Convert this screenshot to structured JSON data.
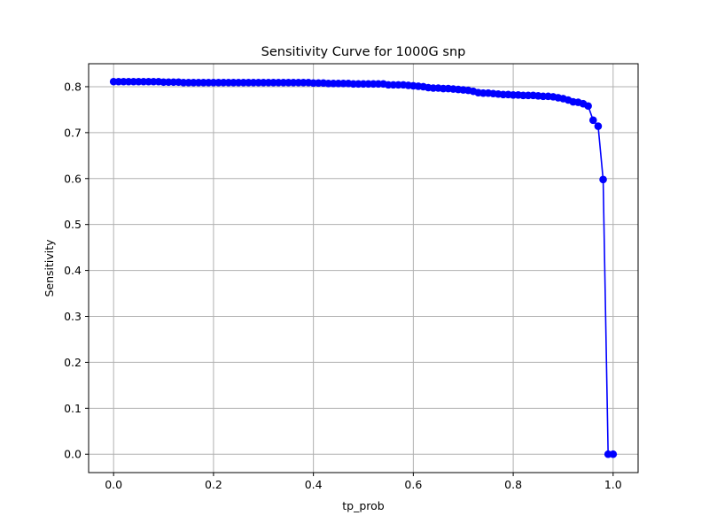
{
  "chart_data": {
    "type": "line",
    "title": "Sensitivity Curve for 1000G snp",
    "xlabel": "tp_prob",
    "ylabel": "Sensitivity",
    "xlim": [
      -0.05,
      1.05
    ],
    "ylim": [
      -0.04,
      0.85
    ],
    "xticks": [
      0.0,
      0.2,
      0.4,
      0.6,
      0.8,
      1.0
    ],
    "xtick_labels": [
      "0.0",
      "0.2",
      "0.4",
      "0.6",
      "0.8",
      "1.0"
    ],
    "yticks": [
      0.0,
      0.1,
      0.2,
      0.3,
      0.4,
      0.5,
      0.6,
      0.7,
      0.8
    ],
    "ytick_labels": [
      "0.0",
      "0.1",
      "0.2",
      "0.3",
      "0.4",
      "0.5",
      "0.6",
      "0.7",
      "0.8"
    ],
    "grid": true,
    "series": [
      {
        "color": "#0000ff",
        "marker": "circle",
        "x": [
          0.0,
          0.01,
          0.02,
          0.03,
          0.04,
          0.05,
          0.06,
          0.07,
          0.08,
          0.09,
          0.1,
          0.11,
          0.12,
          0.13,
          0.14,
          0.15,
          0.16,
          0.17,
          0.18,
          0.19,
          0.2,
          0.21,
          0.22,
          0.23,
          0.24,
          0.25,
          0.26,
          0.27,
          0.28,
          0.29,
          0.3,
          0.31,
          0.32,
          0.33,
          0.34,
          0.35,
          0.36,
          0.37,
          0.38,
          0.39,
          0.4,
          0.41,
          0.42,
          0.43,
          0.44,
          0.45,
          0.46,
          0.47,
          0.48,
          0.49,
          0.5,
          0.51,
          0.52,
          0.53,
          0.54,
          0.55,
          0.56,
          0.57,
          0.58,
          0.59,
          0.6,
          0.61,
          0.62,
          0.63,
          0.64,
          0.65,
          0.66,
          0.67,
          0.68,
          0.69,
          0.7,
          0.71,
          0.72,
          0.73,
          0.74,
          0.75,
          0.76,
          0.77,
          0.78,
          0.79,
          0.8,
          0.81,
          0.82,
          0.83,
          0.84,
          0.85,
          0.86,
          0.87,
          0.88,
          0.89,
          0.9,
          0.91,
          0.92,
          0.93,
          0.94,
          0.95,
          0.96,
          0.97,
          0.98,
          0.99,
          1.0
        ],
        "y": [
          0.811,
          0.811,
          0.811,
          0.811,
          0.811,
          0.811,
          0.811,
          0.811,
          0.811,
          0.811,
          0.81,
          0.81,
          0.81,
          0.81,
          0.809,
          0.809,
          0.809,
          0.809,
          0.809,
          0.809,
          0.809,
          0.809,
          0.809,
          0.809,
          0.809,
          0.809,
          0.809,
          0.809,
          0.809,
          0.809,
          0.809,
          0.809,
          0.809,
          0.809,
          0.809,
          0.809,
          0.809,
          0.809,
          0.809,
          0.809,
          0.808,
          0.808,
          0.808,
          0.807,
          0.807,
          0.807,
          0.807,
          0.807,
          0.806,
          0.806,
          0.806,
          0.806,
          0.806,
          0.806,
          0.806,
          0.804,
          0.804,
          0.804,
          0.804,
          0.803,
          0.802,
          0.801,
          0.8,
          0.798,
          0.797,
          0.797,
          0.796,
          0.796,
          0.795,
          0.794,
          0.793,
          0.792,
          0.79,
          0.787,
          0.786,
          0.786,
          0.785,
          0.784,
          0.783,
          0.783,
          0.782,
          0.782,
          0.781,
          0.781,
          0.781,
          0.78,
          0.779,
          0.779,
          0.778,
          0.776,
          0.774,
          0.771,
          0.767,
          0.766,
          0.763,
          0.758,
          0.727,
          0.714,
          0.598,
          0.0,
          0.0
        ]
      }
    ]
  }
}
